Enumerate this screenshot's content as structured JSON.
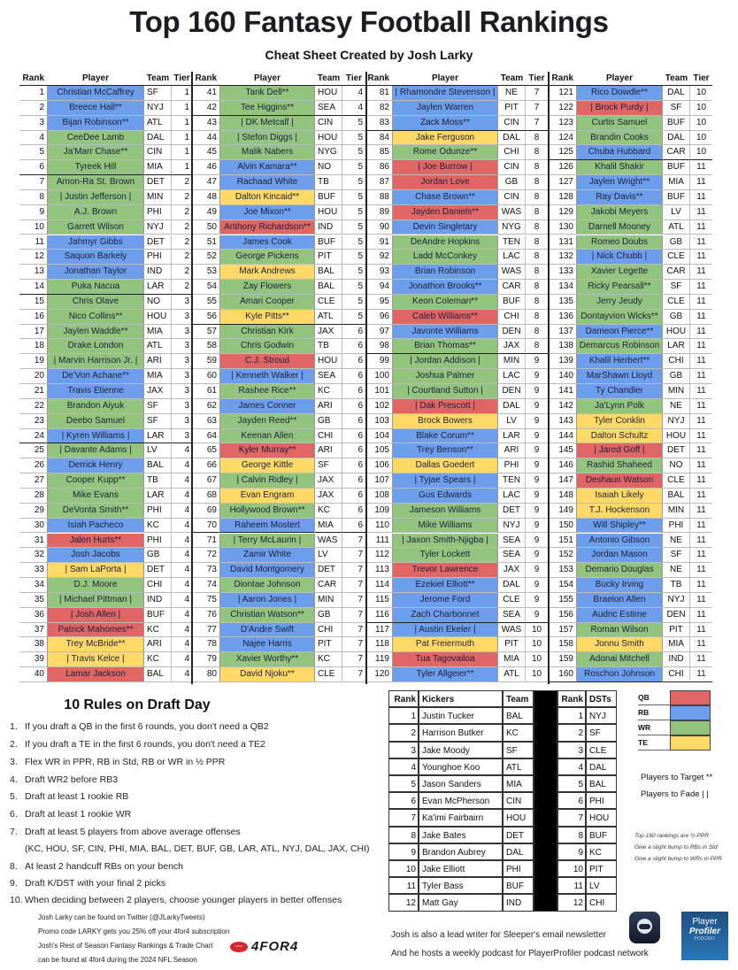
{
  "header": {
    "title": "Top 160 Fantasy Football Rankings",
    "subtitle": "Cheat Sheet Created by Josh Larky"
  },
  "table_headers": [
    "Rank",
    "Player",
    "Team",
    "Tier"
  ],
  "position_colors": {
    "QB": "#e06666",
    "RB": "#6d9eeb",
    "WR": "#93c47d",
    "TE": "#ffd966"
  },
  "players": [
    [
      1,
      "Christian McCaffrey",
      "SF",
      1,
      "RB"
    ],
    [
      2,
      "Breece Hall**",
      "NYJ",
      1,
      "RB"
    ],
    [
      3,
      "Bijan Robinson**",
      "ATL",
      1,
      "RB"
    ],
    [
      4,
      "CeeDee Lamb",
      "DAL",
      1,
      "WR"
    ],
    [
      5,
      "Ja'Marr Chase**",
      "CIN",
      1,
      "WR"
    ],
    [
      6,
      "Tyreek Hill",
      "MIA",
      1,
      "WR"
    ],
    [
      7,
      "Amon-Ra St. Brown",
      "DET",
      2,
      "WR"
    ],
    [
      8,
      "| Justin Jefferson |",
      "MIN",
      2,
      "WR"
    ],
    [
      9,
      "A.J. Brown",
      "PHI",
      2,
      "WR"
    ],
    [
      10,
      "Garrett Wilson",
      "NYJ",
      2,
      "WR"
    ],
    [
      11,
      "Jahmyr Gibbs",
      "DET",
      2,
      "RB"
    ],
    [
      12,
      "Saquon Barkely",
      "PHI",
      2,
      "RB"
    ],
    [
      13,
      "Jonathan Taylor",
      "IND",
      2,
      "RB"
    ],
    [
      14,
      "Puka Nacua",
      "LAR",
      2,
      "WR"
    ],
    [
      15,
      "Chris Olave",
      "NO",
      3,
      "WR"
    ],
    [
      16,
      "Nico Collins**",
      "HOU",
      3,
      "WR"
    ],
    [
      17,
      "Jaylen Waddle**",
      "MIA",
      3,
      "WR"
    ],
    [
      18,
      "Drake London",
      "ATL",
      3,
      "WR"
    ],
    [
      19,
      "| Marvin Harrison Jr. |",
      "ARI",
      3,
      "WR"
    ],
    [
      20,
      "De'Von Achane**",
      "MIA",
      3,
      "RB"
    ],
    [
      21,
      "Travis Etienne",
      "JAX",
      3,
      "RB"
    ],
    [
      22,
      "Brandon Aiyuk",
      "SF",
      3,
      "WR"
    ],
    [
      23,
      "Deebo Samuel",
      "SF",
      3,
      "WR"
    ],
    [
      24,
      "| Kyren Williams |",
      "LAR",
      3,
      "RB"
    ],
    [
      25,
      "| Davante Adams |",
      "LV",
      4,
      "WR"
    ],
    [
      26,
      "Derrick Henry",
      "BAL",
      4,
      "RB"
    ],
    [
      27,
      "Cooper Kupp**",
      "TB",
      4,
      "WR"
    ],
    [
      28,
      "Mike Evans",
      "LAR",
      4,
      "WR"
    ],
    [
      29,
      "DeVonta Smith**",
      "PHI",
      4,
      "WR"
    ],
    [
      30,
      "Isiah Pacheco",
      "KC",
      4,
      "RB"
    ],
    [
      31,
      "Jalen Hurts**",
      "PHI",
      4,
      "QB"
    ],
    [
      32,
      "Josh Jacobs",
      "GB",
      4,
      "RB"
    ],
    [
      33,
      "| Sam LaPorta |",
      "DET",
      4,
      "TE"
    ],
    [
      34,
      "D.J. Moore",
      "CHI",
      4,
      "WR"
    ],
    [
      35,
      "| Michael Pittman |",
      "IND",
      4,
      "WR"
    ],
    [
      36,
      "| Josh Allen |",
      "BUF",
      4,
      "QB"
    ],
    [
      37,
      "Patrick Mahomes**",
      "KC",
      4,
      "QB"
    ],
    [
      38,
      "Trey McBride**",
      "ARI",
      4,
      "TE"
    ],
    [
      39,
      "| Travis Kelce |",
      "KC",
      4,
      "TE"
    ],
    [
      40,
      "Lamar Jackson",
      "BAL",
      4,
      "QB"
    ],
    [
      41,
      "Tank Dell**",
      "HOU",
      4,
      "WR"
    ],
    [
      42,
      "Tee Higgins**",
      "SEA",
      4,
      "WR"
    ],
    [
      43,
      "| DK Metcalf |",
      "CIN",
      5,
      "WR"
    ],
    [
      44,
      "| Stefon Diggs |",
      "HOU",
      5,
      "WR"
    ],
    [
      45,
      "Malik Nabers",
      "NYG",
      5,
      "WR"
    ],
    [
      46,
      "Alvin Kamara**",
      "NO",
      5,
      "RB"
    ],
    [
      47,
      "Rachaad White",
      "TB",
      5,
      "RB"
    ],
    [
      48,
      "Dalton Kincaid**",
      "BUF",
      5,
      "TE"
    ],
    [
      49,
      "Joe Mixon**",
      "HOU",
      5,
      "RB"
    ],
    [
      50,
      "Anthony Richardson**",
      "IND",
      5,
      "QB"
    ],
    [
      51,
      "James Cook",
      "BUF",
      5,
      "RB"
    ],
    [
      52,
      "George Pickens",
      "PIT",
      5,
      "WR"
    ],
    [
      53,
      "Mark Andrews",
      "BAL",
      5,
      "TE"
    ],
    [
      54,
      "Zay Flowers",
      "BAL",
      5,
      "WR"
    ],
    [
      55,
      "Amari Cooper",
      "CLE",
      5,
      "WR"
    ],
    [
      56,
      "Kyle Pitts**",
      "ATL",
      5,
      "TE"
    ],
    [
      57,
      "Christian Kirk",
      "JAX",
      6,
      "WR"
    ],
    [
      58,
      "Chris Godwin",
      "TB",
      6,
      "WR"
    ],
    [
      59,
      "C.J. Stroud",
      "HOU",
      6,
      "QB"
    ],
    [
      60,
      "| Kenneth Walker |",
      "SEA",
      6,
      "RB"
    ],
    [
      61,
      "Rashee Rice**",
      "KC",
      6,
      "WR"
    ],
    [
      62,
      "James Conner",
      "ARI",
      6,
      "RB"
    ],
    [
      63,
      "Jayden Reed**",
      "GB",
      6,
      "WR"
    ],
    [
      64,
      "Keenan Allen",
      "CHI",
      6,
      "WR"
    ],
    [
      65,
      "Kyler Murray**",
      "ARI",
      6,
      "QB"
    ],
    [
      66,
      "George Kittle",
      "SF",
      6,
      "TE"
    ],
    [
      67,
      "| Calvin Ridley |",
      "JAX",
      6,
      "WR"
    ],
    [
      68,
      "Evan Engram",
      "JAX",
      6,
      "TE"
    ],
    [
      69,
      "Hollywood Brown**",
      "KC",
      6,
      "WR"
    ],
    [
      70,
      "Raheem Mostert",
      "MIA",
      6,
      "RB"
    ],
    [
      71,
      "| Terry McLaurin |",
      "WAS",
      7,
      "WR"
    ],
    [
      72,
      "Zamir White",
      "LV",
      7,
      "RB"
    ],
    [
      73,
      "David Montgomery",
      "DET",
      7,
      "RB"
    ],
    [
      74,
      "Diontae Johnson",
      "CAR",
      7,
      "WR"
    ],
    [
      75,
      "| Aaron Jones |",
      "MIN",
      7,
      "RB"
    ],
    [
      76,
      "Christian Watson**",
      "GB",
      7,
      "WR"
    ],
    [
      77,
      "D'Andre Swift",
      "CHI",
      7,
      "RB"
    ],
    [
      78,
      "Najee Harris",
      "PIT",
      7,
      "RB"
    ],
    [
      79,
      "Xavier Worthy**",
      "KC",
      7,
      "WR"
    ],
    [
      80,
      "David Njoku**",
      "CLE",
      7,
      "TE"
    ],
    [
      81,
      "| Rhamondre Stevenson |",
      "NE",
      7,
      "RB"
    ],
    [
      82,
      "Jaylen Warren",
      "PIT",
      7,
      "RB"
    ],
    [
      83,
      "Zack Moss**",
      "CIN",
      7,
      "RB"
    ],
    [
      84,
      "Jake Ferguson",
      "DAL",
      8,
      "TE"
    ],
    [
      85,
      "Rome Odunze**",
      "CHI",
      8,
      "WR"
    ],
    [
      86,
      "| Joe Burrow |",
      "CIN",
      8,
      "QB"
    ],
    [
      87,
      "Jordan Love",
      "GB",
      8,
      "QB"
    ],
    [
      88,
      "Chase Brown**",
      "CIN",
      8,
      "RB"
    ],
    [
      89,
      "Jayden Daniels**",
      "WAS",
      8,
      "QB"
    ],
    [
      90,
      "Devin Singletary",
      "NYG",
      8,
      "RB"
    ],
    [
      91,
      "DeAndre Hopkins",
      "TEN",
      8,
      "WR"
    ],
    [
      92,
      "Ladd McConkey",
      "LAC",
      8,
      "WR"
    ],
    [
      93,
      "Brian Robinson",
      "WAS",
      8,
      "RB"
    ],
    [
      94,
      "Jonathon Brooks**",
      "CAR",
      8,
      "RB"
    ],
    [
      95,
      "Keon Coleman**",
      "BUF",
      8,
      "WR"
    ],
    [
      96,
      "Caleb Williams**",
      "CHI",
      8,
      "QB"
    ],
    [
      97,
      "Javonte Williams",
      "DEN",
      8,
      "RB"
    ],
    [
      98,
      "Brian Thomas**",
      "JAX",
      8,
      "WR"
    ],
    [
      99,
      "| Jordan Addison |",
      "MIN",
      9,
      "WR"
    ],
    [
      100,
      "Joshua Palmer",
      "LAC",
      9,
      "WR"
    ],
    [
      101,
      "| Courtland Sutton |",
      "DEN",
      9,
      "WR"
    ],
    [
      102,
      "| Dak Prescott |",
      "DAL",
      9,
      "QB"
    ],
    [
      103,
      "Brock Bowers",
      "LV",
      9,
      "TE"
    ],
    [
      104,
      "Blake Corum**",
      "LAR",
      9,
      "RB"
    ],
    [
      105,
      "Trey Benson**",
      "ARI",
      9,
      "RB"
    ],
    [
      106,
      "Dallas Goedert",
      "PHI",
      9,
      "TE"
    ],
    [
      107,
      "| Tyjae Spears |",
      "TEN",
      9,
      "RB"
    ],
    [
      108,
      "Gus Edwards",
      "LAC",
      9,
      "RB"
    ],
    [
      109,
      "Jameson Williams",
      "DET",
      9,
      "WR"
    ],
    [
      110,
      "Mike Williams",
      "NYJ",
      9,
      "WR"
    ],
    [
      111,
      "| Jaxon Smith-Njigba |",
      "SEA",
      9,
      "WR"
    ],
    [
      112,
      "Tyler Lockett",
      "SEA",
      9,
      "WR"
    ],
    [
      113,
      "Trevor Lawrence",
      "JAX",
      9,
      "QB"
    ],
    [
      114,
      "Ezekiel Elliott**",
      "DAL",
      9,
      "RB"
    ],
    [
      115,
      "Jerome Ford",
      "CLE",
      9,
      "RB"
    ],
    [
      116,
      "Zach Charbonnet",
      "SEA",
      9,
      "RB"
    ],
    [
      117,
      "| Austin Ekeler |",
      "WAS",
      10,
      "RB"
    ],
    [
      118,
      "Pat Freiermuth",
      "PIT",
      10,
      "TE"
    ],
    [
      119,
      "Tua Tagovailoa",
      "MIA",
      10,
      "QB"
    ],
    [
      120,
      "Tyler Allgeier**",
      "ATL",
      10,
      "RB"
    ],
    [
      121,
      "Rico Dowdle**",
      "DAL",
      10,
      "RB"
    ],
    [
      122,
      "| Brock Purdy |",
      "SF",
      10,
      "QB"
    ],
    [
      123,
      "Curtis Samuel",
      "BUF",
      10,
      "WR"
    ],
    [
      124,
      "Brandin Cooks",
      "DAL",
      10,
      "WR"
    ],
    [
      125,
      "Chuba Hubbard",
      "CAR",
      10,
      "RB"
    ],
    [
      126,
      "Khalil Shakir",
      "BUF",
      11,
      "WR"
    ],
    [
      127,
      "Jaylen Wright**",
      "MIA",
      11,
      "RB"
    ],
    [
      128,
      "Ray Davis**",
      "BUF",
      11,
      "RB"
    ],
    [
      129,
      "Jakobi Meyers",
      "LV",
      11,
      "WR"
    ],
    [
      130,
      "Darnell Mooney",
      "ATL",
      11,
      "WR"
    ],
    [
      131,
      "Romeo Doubs",
      "GB",
      11,
      "WR"
    ],
    [
      132,
      "| Nick Chubb |",
      "CLE",
      11,
      "RB"
    ],
    [
      133,
      "Xavier Legette",
      "CAR",
      11,
      "WR"
    ],
    [
      134,
      "Ricky Pearsall**",
      "SF",
      11,
      "WR"
    ],
    [
      135,
      "Jerry Jeudy",
      "CLE",
      11,
      "WR"
    ],
    [
      136,
      "Dontayvion Wicks**",
      "GB",
      11,
      "WR"
    ],
    [
      137,
      "Dameon Pierce**",
      "HOU",
      11,
      "RB"
    ],
    [
      138,
      "Demarcus Robinson",
      "LAR",
      11,
      "WR"
    ],
    [
      139,
      "Khalil Herbert**",
      "CHI",
      11,
      "RB"
    ],
    [
      140,
      "MarShawn Lloyd",
      "GB",
      11,
      "RB"
    ],
    [
      141,
      "Ty Chandler",
      "MIN",
      11,
      "RB"
    ],
    [
      142,
      "Ja'Lynn Polk",
      "NE",
      11,
      "WR"
    ],
    [
      143,
      "Tyler Conklin",
      "NYJ",
      11,
      "TE"
    ],
    [
      144,
      "Dalton Schultz",
      "HOU",
      11,
      "TE"
    ],
    [
      145,
      "| Jared Goff |",
      "DET",
      11,
      "QB"
    ],
    [
      146,
      "Rashid Shaheed",
      "NO",
      11,
      "WR"
    ],
    [
      147,
      "Deshaun Watson",
      "CLE",
      11,
      "QB"
    ],
    [
      148,
      "Isaiah Likely",
      "BAL",
      11,
      "TE"
    ],
    [
      149,
      "T.J. Hockenson",
      "MIN",
      11,
      "TE"
    ],
    [
      150,
      "Will Shipley**",
      "PHI",
      11,
      "RB"
    ],
    [
      151,
      "Antonio Gibson",
      "NE",
      11,
      "RB"
    ],
    [
      152,
      "Jordan Mason",
      "SF",
      11,
      "RB"
    ],
    [
      153,
      "Demario Douglas",
      "NE",
      11,
      "WR"
    ],
    [
      154,
      "Bucky Irving",
      "TB",
      11,
      "RB"
    ],
    [
      155,
      "Braelon Allen",
      "NYJ",
      11,
      "RB"
    ],
    [
      156,
      "Audric Estime",
      "DEN",
      11,
      "RB"
    ],
    [
      157,
      "Roman Wilson",
      "PIT",
      11,
      "WR"
    ],
    [
      158,
      "Jonnu Smith",
      "MIA",
      11,
      "TE"
    ],
    [
      159,
      "Adonai Mitchell",
      "IND",
      11,
      "WR"
    ],
    [
      160,
      "Roschon Johnson",
      "CHI",
      11,
      "RB"
    ]
  ],
  "rules": {
    "title": "10 Rules on Draft Day",
    "items": [
      {
        "n": "1.",
        "text": "If you draft a QB in the first 6 rounds, you don't need a QB2"
      },
      {
        "n": "2.",
        "text": "If you draft a TE in the first 6 rounds, you don't need a TE2"
      },
      {
        "n": "3.",
        "text": "Flex WR in PPR, RB in Std, RB or WR in ½ PPR"
      },
      {
        "n": "4.",
        "text": "Draft WR2 before RB3"
      },
      {
        "n": "5.",
        "text": "Draft at least 1 rookie RB"
      },
      {
        "n": "6.",
        "text": "Draft at least 1 rookie WR"
      },
      {
        "n": "7.",
        "text": "Draft at least 5 players from above average offenses"
      },
      {
        "n": "",
        "text": "(KC, HOU, SF, CIN, PHI, MIA, BAL, DET, BUF, GB, LAR, ATL, NYJ, DAL, JAX, CHI)"
      },
      {
        "n": "8.",
        "text": "At least 2 handcuff RBs on your bench"
      },
      {
        "n": "9.",
        "text": "Draft K/DST with your final 2 picks"
      },
      {
        "n": "10.",
        "text": "When deciding between 2 players, choose younger players in better offenses"
      }
    ]
  },
  "credits": [
    "Josh Larky can be found on Twitter (@JLarkyTweets)",
    "Promo code LARKY gets you 25% off your 4for4 subscription",
    "Josh's Rest of Season Fantasy Rankings & Trade Chart",
    "can be found at 4for4 during the 2024 NFL Season"
  ],
  "logo_4for4": "4FOR4",
  "kickers": {
    "headers": [
      "Rank",
      "Kickers",
      "Team",
      "Rank",
      "DSTs"
    ],
    "rows": [
      [
        1,
        "Justin Tucker",
        "BAL",
        1,
        "NYJ"
      ],
      [
        2,
        "Harrison Butker",
        "KC",
        2,
        "SF"
      ],
      [
        3,
        "Jake Moody",
        "SF",
        3,
        "CLE"
      ],
      [
        4,
        "Younghoe Koo",
        "ATL",
        4,
        "DAL"
      ],
      [
        5,
        "Jason Sanders",
        "MIA",
        5,
        "BAL"
      ],
      [
        6,
        "Evan McPherson",
        "CIN",
        6,
        "PHI"
      ],
      [
        7,
        "Ka'imi Fairbairn",
        "HOU",
        7,
        "HOU"
      ],
      [
        8,
        "Jake Bates",
        "DET",
        8,
        "BUF"
      ],
      [
        9,
        "Brandon Aubrey",
        "DAL",
        9,
        "KC"
      ],
      [
        10,
        "Jake Elliott",
        "PHI",
        10,
        "PIT"
      ],
      [
        11,
        "Tyler Bass",
        "BUF",
        11,
        "LV"
      ],
      [
        12,
        "Matt Gay",
        "IND",
        12,
        "CHI"
      ]
    ]
  },
  "legend": [
    {
      "label": "QB",
      "color": "#e06666"
    },
    {
      "label": "RB",
      "color": "#6d9eeb"
    },
    {
      "label": "WR",
      "color": "#93c47d"
    },
    {
      "label": "TE",
      "color": "#ffd966"
    }
  ],
  "markers": {
    "target": "Players to Target **",
    "fade": "Players to Fade | |"
  },
  "notes": [
    "Top-160 rankings are ½-PPR",
    "Give a slight bump to RBs in Std",
    "Give a slight bump to WRs in PPR"
  ],
  "footer": [
    "Josh is also a lead writer for Sleeper's email newsletter",
    "And he hosts a weekly podcast for PlayerProfiler podcast network"
  ],
  "podcast_logo": {
    "line1": "Player",
    "line2": "Profiler",
    "line3": "PODCAST"
  }
}
